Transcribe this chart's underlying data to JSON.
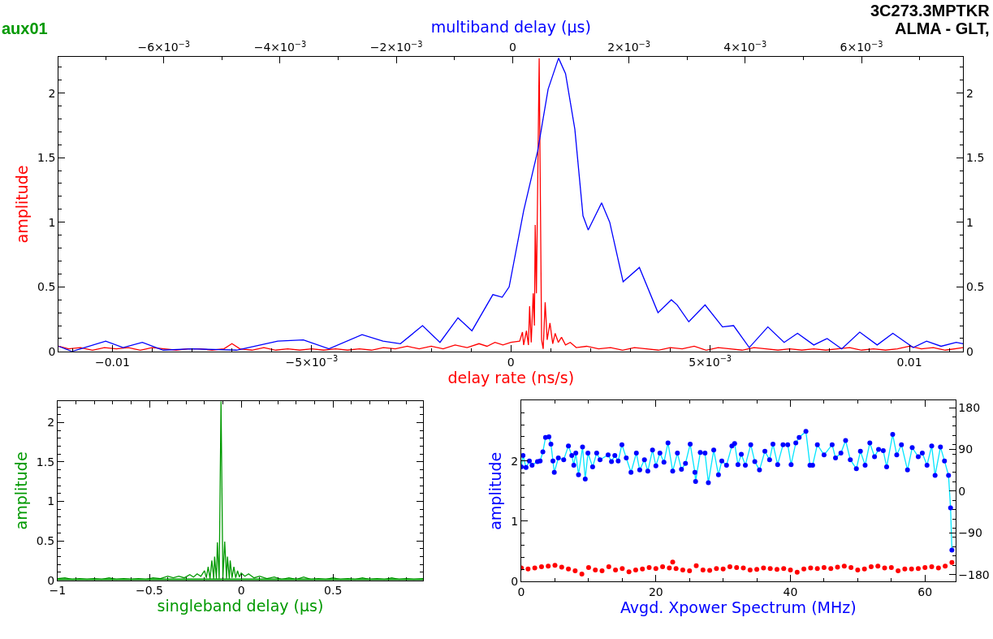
{
  "chart_data": [
    {
      "type": "line",
      "xlabel": "delay rate (ns/s)",
      "x2label": "multiband delay (µs)",
      "ylabel": "amplitude",
      "annotations": [
        "aux01",
        "3C273.3MPTKR",
        "ALMA - GLT,"
      ],
      "xlim": [
        -0.01135,
        0.01135
      ],
      "xticks": [
        {
          "value": -0.01,
          "label": "−0.01"
        },
        {
          "value": -0.005,
          "label": "−5×10$^{−3}$"
        },
        0,
        {
          "value": 0.005,
          "label": "5×10$^{−3}$"
        },
        0.01
      ],
      "x2lim": [
        -0.00781,
        0.00775
      ],
      "x2ticks": [
        {
          "value": -0.006,
          "label": "−6×10$^{−3}$"
        },
        {
          "value": -0.004,
          "label": "−4×10$^{−3}$"
        },
        {
          "value": -0.002,
          "label": "−2×10$^{−3}$"
        },
        0,
        {
          "value": 0.002,
          "label": "2×10$^{−3}$"
        },
        {
          "value": 0.004,
          "label": "4×10$^{−3}$"
        },
        {
          "value": 0.006,
          "label": "6×10$^{−3}$"
        }
      ],
      "ylim": [
        0,
        2.28
      ],
      "yticks": [
        0,
        0.5,
        1,
        1.5,
        2
      ],
      "y2lim": [
        0,
        2.28
      ],
      "y2ticks": [
        0,
        0.5,
        1,
        1.5,
        2
      ],
      "series": [
        {
          "color": "#ff0000",
          "x": [
            -0.01135,
            -0.0111,
            -0.0108,
            -0.0105,
            -0.0102,
            -0.0099,
            -0.0096,
            -0.0093,
            -0.009,
            -0.0087,
            -0.0084,
            -0.0081,
            -0.0078,
            -0.0075,
            -0.0072,
            -0.007,
            -0.0068,
            -0.0065,
            -0.0062,
            -0.0059,
            -0.0056,
            -0.0053,
            -0.005,
            -0.0047,
            -0.0044,
            -0.0041,
            -0.0038,
            -0.0035,
            -0.0032,
            -0.0029,
            -0.0026,
            -0.0023,
            -0.002,
            -0.0017,
            -0.0014,
            -0.0011,
            -0.0008,
            -0.0006,
            -0.0004,
            -0.0002,
            0.0,
            0.00022,
            0.00029,
            0.00032,
            0.00039,
            0.00044,
            0.00047,
            0.00051,
            0.00056,
            0.00059,
            0.00061,
            0.00064,
            0.00071,
            0.00077,
            0.00081,
            0.00086,
            0.00091,
            0.00098,
            0.00105,
            0.00111,
            0.00119,
            0.00127,
            0.00137,
            0.00149,
            0.00164,
            0.0019,
            0.0022,
            0.0025,
            0.0028,
            0.0031,
            0.0034,
            0.0037,
            0.004,
            0.0043,
            0.0046,
            0.0049,
            0.0052,
            0.0055,
            0.0058,
            0.0061,
            0.0064,
            0.0067,
            0.007,
            0.0073,
            0.0076,
            0.0079,
            0.0082,
            0.0085,
            0.0088,
            0.0091,
            0.0094,
            0.0097,
            0.01,
            0.0103,
            0.0106,
            0.0109,
            0.01135
          ],
          "values": [
            0.04,
            0.02,
            0.03,
            0.01,
            0.03,
            0.02,
            0.03,
            0.01,
            0.03,
            0.02,
            0.01,
            0.02,
            0.02,
            0.01,
            0.02,
            0.06,
            0.02,
            0.01,
            0.03,
            0.01,
            0.02,
            0.01,
            0.02,
            0.01,
            0.02,
            0.01,
            0.02,
            0.01,
            0.03,
            0.02,
            0.04,
            0.02,
            0.04,
            0.02,
            0.05,
            0.03,
            0.06,
            0.04,
            0.07,
            0.05,
            0.07,
            0.08,
            0.15,
            0.05,
            0.16,
            0.05,
            0.35,
            0.07,
            0.45,
            0.2,
            0.98,
            0.45,
            2.27,
            0.09,
            0.02,
            0.38,
            0.09,
            0.22,
            0.06,
            0.14,
            0.07,
            0.11,
            0.05,
            0.07,
            0.03,
            0.04,
            0.02,
            0.03,
            0.01,
            0.03,
            0.02,
            0.01,
            0.03,
            0.02,
            0.04,
            0.01,
            0.03,
            0.02,
            0.01,
            0.03,
            0.02,
            0.01,
            0.02,
            0.01,
            0.02,
            0.01,
            0.02,
            0.03,
            0.01,
            0.02,
            0.01,
            0.02,
            0.04,
            0.02,
            0.03,
            0.01,
            0.03
          ]
        },
        {
          "color": "#0000ff",
          "axis": "x2",
          "x": [
            -0.00781,
            -0.00758,
            -0.007,
            -0.0067,
            -0.00637,
            -0.00601,
            -0.00552,
            -0.00475,
            -0.00404,
            -0.0036,
            -0.00316,
            -0.00259,
            -0.00223,
            -0.00193,
            -0.00155,
            -0.00125,
            -0.00094,
            -0.0007,
            -0.00034,
            -0.00018,
            -6e-05,
            0.00019,
            0.00043,
            0.00061,
            0.00079,
            0.00091,
            0.00107,
            0.00121,
            0.0013,
            0.00153,
            0.00167,
            0.0019,
            0.00218,
            0.0025,
            0.00273,
            0.00283,
            0.00303,
            0.00331,
            0.00361,
            0.0038,
            0.00407,
            0.00439,
            0.00467,
            0.0049,
            0.00518,
            0.00541,
            0.00566,
            0.00597,
            0.00627,
            0.00654,
            0.00689,
            0.00712,
            0.00737,
            0.00763,
            0.00775
          ],
          "values": [
            0.04,
            0.0,
            0.08,
            0.03,
            0.07,
            0.01,
            0.02,
            0.01,
            0.08,
            0.09,
            0.02,
            0.13,
            0.08,
            0.06,
            0.2,
            0.07,
            0.26,
            0.16,
            0.44,
            0.42,
            0.5,
            1.09,
            1.55,
            2.03,
            2.27,
            2.15,
            1.72,
            1.05,
            0.94,
            1.15,
            1.0,
            0.54,
            0.65,
            0.3,
            0.4,
            0.36,
            0.23,
            0.36,
            0.19,
            0.2,
            0.03,
            0.19,
            0.07,
            0.14,
            0.05,
            0.1,
            0.02,
            0.15,
            0.05,
            0.14,
            0.03,
            0.08,
            0.04,
            0.07,
            0.06
          ]
        }
      ]
    },
    {
      "type": "line",
      "xlabel": "singleband delay (µs)",
      "ylabel": "amplitude",
      "xlim": [
        -1,
        0.99
      ],
      "xticks": [
        {
          "value": -1,
          "label": "−1"
        },
        {
          "value": -0.5,
          "label": "−0.5"
        },
        0,
        0.5
      ],
      "ylim": [
        0,
        2.27
      ],
      "yticks": [
        0,
        0.5,
        1,
        1.5,
        2
      ],
      "ref_lines": [
        {
          "axis": "y",
          "value": 0,
          "color": "#009900"
        }
      ],
      "series": [
        {
          "color": "#009900",
          "x": [
            -1,
            -0.96,
            -0.92,
            -0.88,
            -0.84,
            -0.8,
            -0.76,
            -0.72,
            -0.68,
            -0.64,
            -0.6,
            -0.56,
            -0.52,
            -0.48,
            -0.44,
            -0.4,
            -0.37,
            -0.34,
            -0.31,
            -0.28,
            -0.26,
            -0.24,
            -0.22,
            -0.2,
            -0.19,
            -0.18,
            -0.17,
            -0.16,
            -0.15,
            -0.145,
            -0.135,
            -0.13,
            -0.12,
            -0.11,
            -0.1,
            -0.09,
            -0.08,
            -0.075,
            -0.065,
            -0.06,
            -0.05,
            -0.04,
            -0.03,
            -0.02,
            -0.01,
            0.0,
            0.02,
            0.04,
            0.07,
            0.1,
            0.14,
            0.18,
            0.22,
            0.26,
            0.3,
            0.34,
            0.38,
            0.42,
            0.46,
            0.5,
            0.54,
            0.58,
            0.62,
            0.66,
            0.7,
            0.74,
            0.78,
            0.82,
            0.86,
            0.9,
            0.94,
            0.99
          ],
          "values": [
            0.02,
            0.03,
            0.01,
            0.02,
            0.01,
            0.02,
            0.01,
            0.03,
            0.01,
            0.02,
            0.01,
            0.02,
            0.01,
            0.03,
            0.02,
            0.05,
            0.03,
            0.05,
            0.03,
            0.07,
            0.04,
            0.08,
            0.05,
            0.12,
            0.03,
            0.17,
            0.02,
            0.25,
            0.02,
            0.3,
            0.02,
            0.48,
            0.02,
            2.27,
            0.02,
            0.49,
            0.02,
            0.3,
            0.02,
            0.25,
            0.03,
            0.17,
            0.03,
            0.12,
            0.04,
            0.09,
            0.05,
            0.08,
            0.03,
            0.05,
            0.02,
            0.04,
            0.01,
            0.03,
            0.01,
            0.04,
            0.01,
            0.02,
            0.01,
            0.03,
            0.01,
            0.02,
            0.01,
            0.03,
            0.01,
            0.02,
            0.01,
            0.03,
            0.01,
            0.02,
            0.01,
            0.02
          ]
        }
      ]
    },
    {
      "type": "line",
      "xlabel": "Avgd. Xpower Spectrum (MHz)",
      "ylabel": "amplitude",
      "marker": "circle",
      "xlim": [
        0,
        64.5
      ],
      "xticks": [
        0,
        20,
        40,
        60
      ],
      "ylim": [
        0,
        3
      ],
      "yticks": [
        0,
        1,
        2
      ],
      "y2lim": [
        -195,
        195
      ],
      "y2ticks": [
        {
          "value": -180,
          "label": "−180"
        },
        {
          "value": -90,
          "label": "−90"
        },
        0,
        90,
        180
      ],
      "series": [
        {
          "color": "#0000ff",
          "type": "line",
          "x": [
            0,
            0.25,
            0.7,
            1.2,
            1.6,
            2.4,
            2.8,
            3.2,
            3.6,
            4.1,
            4.4,
            4.7,
            4.9,
            5.5,
            6.3,
            7.0,
            7.5,
            7.8,
            8.1,
            8.5,
            9.1,
            9.5,
            9.9,
            10.6,
            11.2,
            11.7,
            12.9,
            13.4,
            13.9,
            14.4,
            14.95,
            15.6,
            16.3,
            17.1,
            17.6,
            18.3,
            18.8,
            19.5,
            20.0,
            20.6,
            21.2,
            21.8,
            22.5,
            23.2,
            23.8,
            24.4,
            25.1,
            25.8,
            25.9,
            26.6,
            27.3,
            27.8,
            28.6,
            29.3,
            29.8,
            30.5,
            31.3,
            31.7,
            32.2,
            32.7,
            33.3,
            34.1,
            34.7,
            35.4,
            36.2,
            36.9,
            37.4,
            38.1,
            38.9,
            39.6,
            40.1,
            40.8,
            41.3,
            42.3,
            42.9,
            43.3,
            44.0,
            45.0,
            46.2,
            46.7,
            47.5,
            48.2,
            48.9,
            49.8,
            50.4,
            51.1,
            51.8,
            52.5,
            53.1,
            53.8,
            54.3,
            55.2,
            55.8,
            56.5,
            57.4,
            58.1,
            59.0,
            59.6,
            60.3,
            61.0,
            61.5,
            62.3,
            62.9,
            63.5,
            63.8,
            64.0
          ],
          "values": [
            1.9,
            2.09,
            1.89,
            2.0,
            1.93,
            1.99,
            2.0,
            2.15,
            2.39,
            2.4,
            2.28,
            2.0,
            1.81,
            2.05,
            2.02,
            2.25,
            2.09,
            1.93,
            2.13,
            1.77,
            2.23,
            1.7,
            2.13,
            1.9,
            2.13,
            2.02,
            2.1,
            1.99,
            2.09,
            2.0,
            2.27,
            2.05,
            1.81,
            2.13,
            1.85,
            2.02,
            1.83,
            2.18,
            1.92,
            2.13,
            1.98,
            2.3,
            1.83,
            2.13,
            1.86,
            1.96,
            2.28,
            1.81,
            1.66,
            2.14,
            2.13,
            1.64,
            2.18,
            1.77,
            2.0,
            1.93,
            2.25,
            2.29,
            1.94,
            2.11,
            1.93,
            2.27,
            1.99,
            1.85,
            2.16,
            2.02,
            2.28,
            1.94,
            2.27,
            2.27,
            1.94,
            2.3,
            2.39,
            2.49,
            1.93,
            1.93,
            2.27,
            2.1,
            2.27,
            2.05,
            2.13,
            2.34,
            2.02,
            1.87,
            2.16,
            1.93,
            2.3,
            2.07,
            2.19,
            2.17,
            1.9,
            2.44,
            2.1,
            2.27,
            1.85,
            2.22,
            2.07,
            2.13,
            1.93,
            2.25,
            1.76,
            2.23,
            2.0,
            1.76,
            1.22,
            0.52
          ]
        },
        {
          "color": "#ff0000",
          "type": "scatter",
          "axis": "y2",
          "x": [
            0,
            1,
            2,
            3,
            4,
            5,
            6,
            7,
            8,
            9,
            10,
            11,
            12,
            13,
            14,
            15,
            16,
            17,
            18,
            19,
            20,
            21,
            22,
            22.5,
            23,
            24,
            25,
            26,
            27,
            28,
            29,
            30,
            31,
            32,
            33,
            34,
            35,
            36,
            37,
            38,
            39,
            40,
            41,
            42,
            43,
            44,
            45,
            46,
            47,
            48,
            49,
            50,
            51,
            52,
            53,
            54,
            55,
            56,
            57,
            58,
            59,
            60,
            61,
            62,
            63,
            64
          ],
          "values": [
            -166,
            -168,
            -166,
            -163,
            -162,
            -160,
            -164,
            -168,
            -172,
            -179,
            -165,
            -170,
            -172,
            -163,
            -170,
            -167,
            -174,
            -170,
            -168,
            -165,
            -167,
            -163,
            -166,
            -153,
            -167,
            -170,
            -172,
            -161,
            -170,
            -171,
            -167,
            -168,
            -163,
            -165,
            -166,
            -170,
            -169,
            -166,
            -167,
            -169,
            -167,
            -170,
            -175,
            -168,
            -166,
            -167,
            -165,
            -167,
            -164,
            -162,
            -165,
            -170,
            -168,
            -163,
            -162,
            -166,
            -165,
            -172,
            -168,
            -168,
            -167,
            -165,
            -163,
            -166,
            -162,
            -154
          ]
        }
      ]
    }
  ]
}
